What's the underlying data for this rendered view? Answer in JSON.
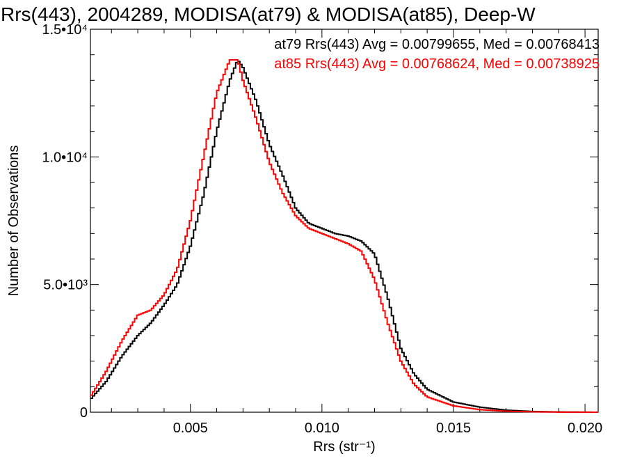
{
  "chart_data": {
    "type": "line",
    "title": "Rrs(443), 2004289, MODISA(at79) & MODISA(at85), Deep-W",
    "xlabel": "Rrs (str⁻¹)",
    "ylabel": "Number of Observations",
    "xlim": [
      0.0012,
      0.0205
    ],
    "ylim": [
      0,
      15000
    ],
    "x_ticks": [
      {
        "value": 0.005,
        "label": "0.005"
      },
      {
        "value": 0.01,
        "label": "0.010"
      },
      {
        "value": 0.015,
        "label": "0.015"
      },
      {
        "value": 0.02,
        "label": "0.020"
      }
    ],
    "y_ticks": [
      {
        "value": 0,
        "label": "0"
      },
      {
        "value": 5000,
        "label": "5.0•10³"
      },
      {
        "value": 10000,
        "label": "1.0•10⁴"
      },
      {
        "value": 15000,
        "label": "1.5•10⁴"
      }
    ],
    "grid": false,
    "legend": "top-right",
    "series": [
      {
        "name": "at79",
        "color": "#000000",
        "stat_text": "at79 Rrs(443) Avg = 0.00799655, Med = 0.00768413",
        "points": [
          [
            0.0012,
            500
          ],
          [
            0.0018,
            1200
          ],
          [
            0.0024,
            2200
          ],
          [
            0.003,
            3000
          ],
          [
            0.0035,
            3500
          ],
          [
            0.004,
            4200
          ],
          [
            0.0045,
            5000
          ],
          [
            0.005,
            6500
          ],
          [
            0.0055,
            8500
          ],
          [
            0.006,
            11000
          ],
          [
            0.0065,
            13000
          ],
          [
            0.0068,
            13800
          ],
          [
            0.007,
            13500
          ],
          [
            0.0075,
            12200
          ],
          [
            0.008,
            10500
          ],
          [
            0.0085,
            9300
          ],
          [
            0.009,
            8000
          ],
          [
            0.0095,
            7400
          ],
          [
            0.01,
            7200
          ],
          [
            0.0105,
            7000
          ],
          [
            0.011,
            6900
          ],
          [
            0.0115,
            6700
          ],
          [
            0.012,
            6200
          ],
          [
            0.0125,
            4500
          ],
          [
            0.013,
            2500
          ],
          [
            0.0135,
            1500
          ],
          [
            0.014,
            900
          ],
          [
            0.015,
            400
          ],
          [
            0.016,
            200
          ],
          [
            0.017,
            80
          ],
          [
            0.018,
            30
          ],
          [
            0.019,
            10
          ],
          [
            0.0205,
            0
          ]
        ]
      },
      {
        "name": "at85",
        "color": "#ff0000",
        "stat_text": "at85 Rrs(443) Avg = 0.00768624, Med = 0.00738925",
        "points": [
          [
            0.0012,
            600
          ],
          [
            0.0018,
            1600
          ],
          [
            0.0024,
            2800
          ],
          [
            0.003,
            3800
          ],
          [
            0.0035,
            4000
          ],
          [
            0.004,
            4600
          ],
          [
            0.0045,
            5600
          ],
          [
            0.005,
            7500
          ],
          [
            0.0055,
            10000
          ],
          [
            0.006,
            12500
          ],
          [
            0.0065,
            13800
          ],
          [
            0.0068,
            13800
          ],
          [
            0.007,
            13000
          ],
          [
            0.0075,
            11500
          ],
          [
            0.008,
            9800
          ],
          [
            0.0085,
            8600
          ],
          [
            0.009,
            7700
          ],
          [
            0.0095,
            7200
          ],
          [
            0.01,
            7000
          ],
          [
            0.0105,
            6800
          ],
          [
            0.011,
            6600
          ],
          [
            0.0115,
            6300
          ],
          [
            0.012,
            5200
          ],
          [
            0.0125,
            3500
          ],
          [
            0.013,
            2000
          ],
          [
            0.0135,
            1100
          ],
          [
            0.014,
            600
          ],
          [
            0.015,
            250
          ],
          [
            0.016,
            100
          ],
          [
            0.017,
            40
          ],
          [
            0.018,
            15
          ],
          [
            0.019,
            5
          ],
          [
            0.0205,
            0
          ]
        ]
      }
    ]
  }
}
